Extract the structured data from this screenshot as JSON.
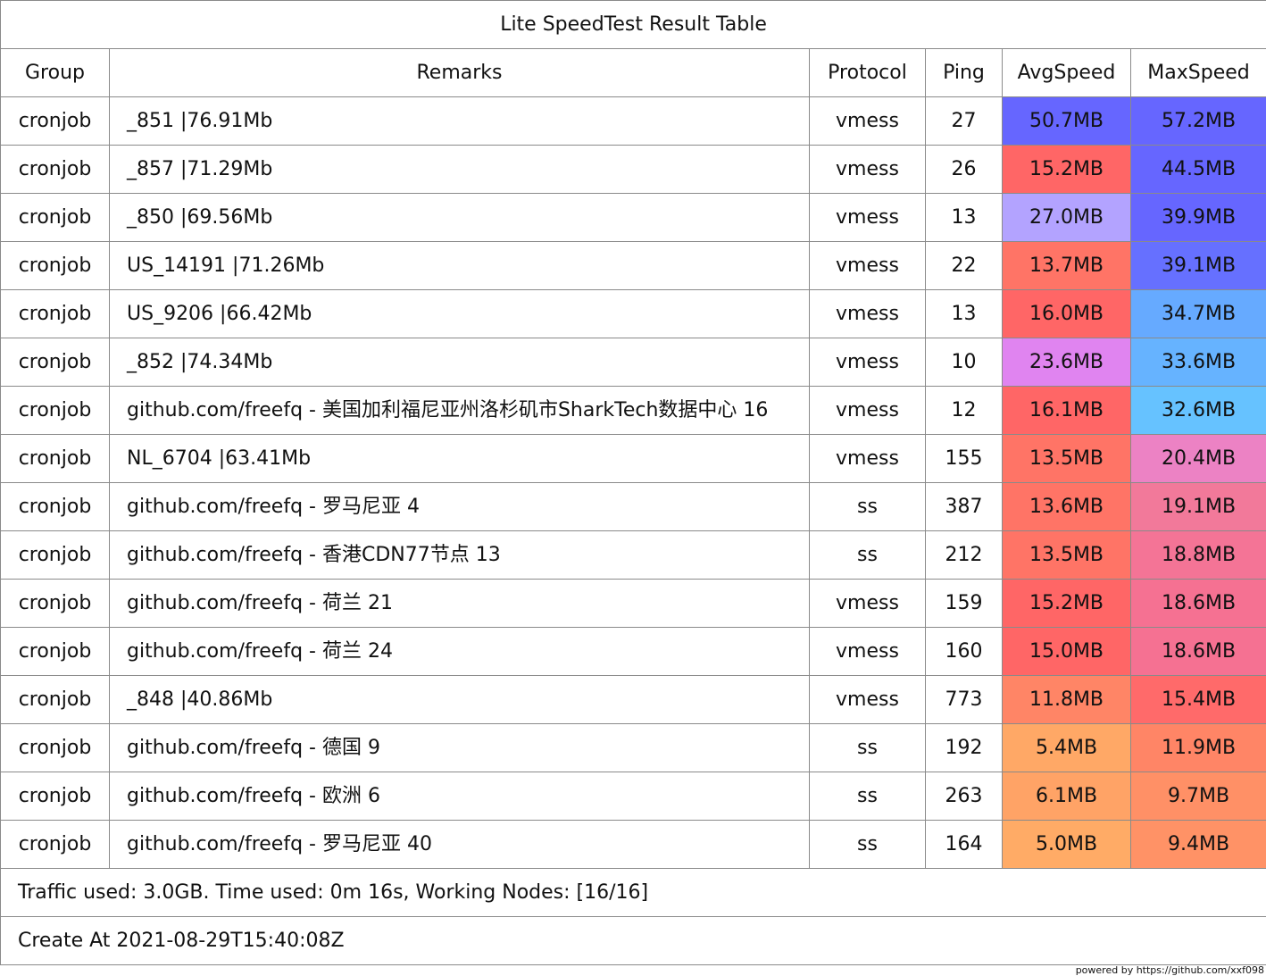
{
  "table": {
    "title": "Lite SpeedTest Result Table",
    "headers": {
      "group": "Group",
      "remarks": "Remarks",
      "protocol": "Protocol",
      "ping": "Ping",
      "avg_speed": "AvgSpeed",
      "max_speed": "MaxSpeed"
    },
    "rows": [
      {
        "group": "cronjob",
        "remarks": "_851 |76.91Mb",
        "protocol": "vmess",
        "ping": "27",
        "avg_speed": "50.7MB",
        "max_speed": "57.2MB",
        "avg_color": "#6666ff",
        "max_color": "#6666ff"
      },
      {
        "group": "cronjob",
        "remarks": "_857 |71.29Mb",
        "protocol": "vmess",
        "ping": "26",
        "avg_speed": "15.2MB",
        "max_speed": "44.5MB",
        "avg_color": "#ff6666",
        "max_color": "#6666ff"
      },
      {
        "group": "cronjob",
        "remarks": "_850 |69.56Mb",
        "protocol": "vmess",
        "ping": "13",
        "avg_speed": "27.0MB",
        "max_speed": "39.9MB",
        "avg_color": "#b3a3ff",
        "max_color": "#6666ff"
      },
      {
        "group": "cronjob",
        "remarks": "  US_14191 |71.26Mb",
        "protocol": "vmess",
        "ping": "22",
        "avg_speed": "13.7MB",
        "max_speed": "39.1MB",
        "avg_color": "#ff7466",
        "max_color": "#6670ff"
      },
      {
        "group": "cronjob",
        "remarks": "  US_9206 |66.42Mb",
        "protocol": "vmess",
        "ping": "13",
        "avg_speed": "16.0MB",
        "max_speed": "34.7MB",
        "avg_color": "#ff6666",
        "max_color": "#66aaff"
      },
      {
        "group": "cronjob",
        "remarks": "_852 |74.34Mb",
        "protocol": "vmess",
        "ping": "10",
        "avg_speed": "23.6MB",
        "max_speed": "33.6MB",
        "avg_color": "#e084f0",
        "max_color": "#66b3ff"
      },
      {
        "group": "cronjob",
        "remarks": "github.com/freefq - 美国加利福尼亚州洛杉矶市SharkTech数据中心 16",
        "protocol": "vmess",
        "ping": "12",
        "avg_speed": "16.1MB",
        "max_speed": "32.6MB",
        "avg_color": "#ff6666",
        "max_color": "#66c2ff"
      },
      {
        "group": "cronjob",
        "remarks": "  NL_6704 |63.41Mb",
        "protocol": "vmess",
        "ping": "155",
        "avg_speed": "13.5MB",
        "max_speed": "20.4MB",
        "avg_color": "#ff7466",
        "max_color": "#ec82c4"
      },
      {
        "group": "cronjob",
        "remarks": "github.com/freefq - 罗马尼亚  4",
        "protocol": "ss",
        "ping": "387",
        "avg_speed": "13.6MB",
        "max_speed": "19.1MB",
        "avg_color": "#ff7466",
        "max_color": "#f2799a"
      },
      {
        "group": "cronjob",
        "remarks": "github.com/freefq - 香港CDN77节点 13",
        "protocol": "ss",
        "ping": "212",
        "avg_speed": "13.5MB",
        "max_speed": "18.8MB",
        "avg_color": "#ff7466",
        "max_color": "#f47496"
      },
      {
        "group": "cronjob",
        "remarks": "github.com/freefq - 荷兰  21",
        "protocol": "vmess",
        "ping": "159",
        "avg_speed": "15.2MB",
        "max_speed": "18.6MB",
        "avg_color": "#ff6666",
        "max_color": "#f57192"
      },
      {
        "group": "cronjob",
        "remarks": "github.com/freefq - 荷兰  24",
        "protocol": "vmess",
        "ping": "160",
        "avg_speed": "15.0MB",
        "max_speed": "18.6MB",
        "avg_color": "#ff6666",
        "max_color": "#f57192"
      },
      {
        "group": "cronjob",
        "remarks": "_848 |40.86Mb",
        "protocol": "vmess",
        "ping": "773",
        "avg_speed": "11.8MB",
        "max_speed": "15.4MB",
        "avg_color": "#ff8566",
        "max_color": "#ff6a6a"
      },
      {
        "group": "cronjob",
        "remarks": "github.com/freefq - 德国  9",
        "protocol": "ss",
        "ping": "192",
        "avg_speed": "5.4MB",
        "max_speed": "11.9MB",
        "avg_color": "#ffa866",
        "max_color": "#ff8566"
      },
      {
        "group": "cronjob",
        "remarks": "github.com/freefq - 欧洲  6",
        "protocol": "ss",
        "ping": "263",
        "avg_speed": "6.1MB",
        "max_speed": "9.7MB",
        "avg_color": "#ffa366",
        "max_color": "#ff9066"
      },
      {
        "group": "cronjob",
        "remarks": "github.com/freefq - 罗马尼亚  40",
        "protocol": "ss",
        "ping": "164",
        "avg_speed": "5.0MB",
        "max_speed": "9.4MB",
        "avg_color": "#ffab66",
        "max_color": "#ff9266"
      }
    ],
    "traffic_summary": "Traffic used: 3.0GB. Time used: 0m 16s, Working Nodes: [16/16]",
    "created_at": "Create At 2021-08-29T15:40:08Z"
  },
  "credit": "powered by https://github.com/xxf098"
}
